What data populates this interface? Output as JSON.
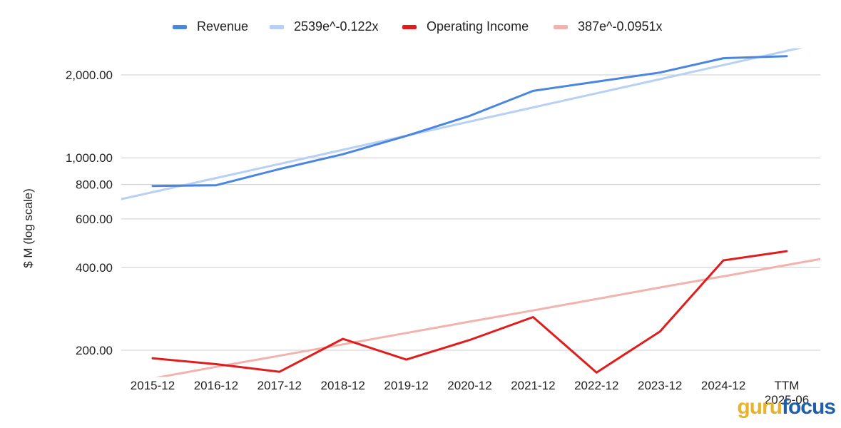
{
  "chart_data": {
    "type": "line",
    "title": "",
    "xlabel": "",
    "ylabel": "$ M (log scale)",
    "yscale": "log",
    "ylim": [
      160,
      2500
    ],
    "yticks": [
      200,
      400,
      600,
      800,
      1000,
      2000
    ],
    "ytick_labels": [
      "200.00",
      "400.00",
      "600.00",
      "800.00",
      "1,000.00",
      "2,000.00"
    ],
    "categories": [
      "2015-12",
      "2016-12",
      "2017-12",
      "2018-12",
      "2019-12",
      "2020-12",
      "2021-12",
      "2022-12",
      "2023-12",
      "2024-12",
      "TTM\n2025-06"
    ],
    "grid": true,
    "legend_position": "top",
    "series": [
      {
        "name": "Revenue",
        "color": "#4a86e0",
        "values": [
          790,
          795,
          910,
          1030,
          1200,
          1420,
          1750,
          1890,
          2040,
          2300,
          2340
        ]
      },
      {
        "name": "2539e^-0.122x",
        "color": "#b7d0f4",
        "trend": true,
        "extend": true,
        "values": [
          750,
          844,
          950,
          1069,
          1203,
          1354,
          1524,
          1715,
          1930,
          2172,
          2445
        ]
      },
      {
        "name": "Operating Income",
        "color": "#e01c1c",
        "values": [
          187,
          178,
          167,
          220,
          185,
          218,
          264,
          166,
          234,
          424,
          458
        ]
      },
      {
        "name": "387e^-0.0951x",
        "color": "#f2b3ad",
        "trend": true,
        "extend": true,
        "values": [
          158,
          174,
          191,
          210,
          231,
          254,
          279,
          307,
          338,
          371,
          408
        ]
      }
    ]
  },
  "legend": [
    {
      "label": "Revenue",
      "color": "#4a86e0"
    },
    {
      "label": "2539e^-0.122x",
      "color": "#b7d0f4"
    },
    {
      "label": "Operating Income",
      "color": "#e01c1c"
    },
    {
      "label": "387e^-0.0951x",
      "color": "#f2b3ad"
    }
  ],
  "logo": {
    "part1": "guru",
    "part2": "focus"
  }
}
